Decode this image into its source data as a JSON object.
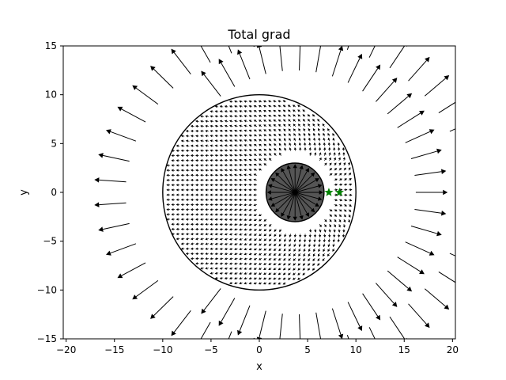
{
  "chart_data": {
    "type": "quiver",
    "title": "Total grad",
    "xlabel": "x",
    "ylabel": "y",
    "xlim": [
      -20.3,
      20.3
    ],
    "ylim": [
      -15,
      15
    ],
    "xticks": [
      -20,
      -15,
      -10,
      -5,
      0,
      5,
      10,
      15,
      20
    ],
    "yticks": [
      -15,
      -10,
      -5,
      0,
      5,
      10,
      15
    ],
    "xtick_labels": [
      "−20",
      "−15",
      "−10",
      "−5",
      "0",
      "5",
      "10",
      "15",
      "20"
    ],
    "ytick_labels": [
      "−15",
      "−10",
      "−5",
      "0",
      "5",
      "10",
      "15"
    ],
    "grid": false,
    "outer_circle": {
      "center": [
        0.0,
        0.0
      ],
      "radius": 10.0,
      "color": "#000000"
    },
    "obstacle": {
      "center": [
        3.7,
        0.0
      ],
      "radius": 3.0,
      "color": "#555555"
    },
    "markers": [
      {
        "x": 7.2,
        "y": 0.0,
        "symbol": "*",
        "color": "#008000"
      },
      {
        "x": 8.3,
        "y": 0.0,
        "symbol": "*",
        "color": "#008000"
      }
    ],
    "arrow_color": "#000000",
    "outer_field": {
      "description_free": true,
      "center": [
        3.7,
        0.0
      ],
      "angles_deg": [
        0,
        8,
        16,
        24,
        32,
        40,
        48,
        56,
        64,
        72,
        80,
        88,
        96,
        104,
        112,
        120,
        128,
        136,
        144,
        152,
        160,
        168,
        176,
        184,
        192,
        200,
        208,
        216,
        224,
        232,
        240,
        248,
        256,
        264,
        272,
        280,
        288,
        296,
        304,
        312,
        320,
        328,
        336,
        344,
        352
      ],
      "start_radius": 12.5,
      "arrow_length": 3.3
    },
    "inner_field": {
      "grid_step_x": 0.5,
      "grid_step_y": 0.5,
      "arrow_direction_deg": 180,
      "arrow_length": 0.38
    },
    "obstacle_field": {
      "center": [
        3.7,
        0.0
      ],
      "angles_deg": [
        0,
        15,
        30,
        45,
        60,
        75,
        90,
        105,
        120,
        135,
        150,
        165,
        180,
        195,
        210,
        225,
        240,
        255,
        270,
        285,
        300,
        315,
        330,
        345
      ],
      "arrow_length": 2.9
    }
  }
}
